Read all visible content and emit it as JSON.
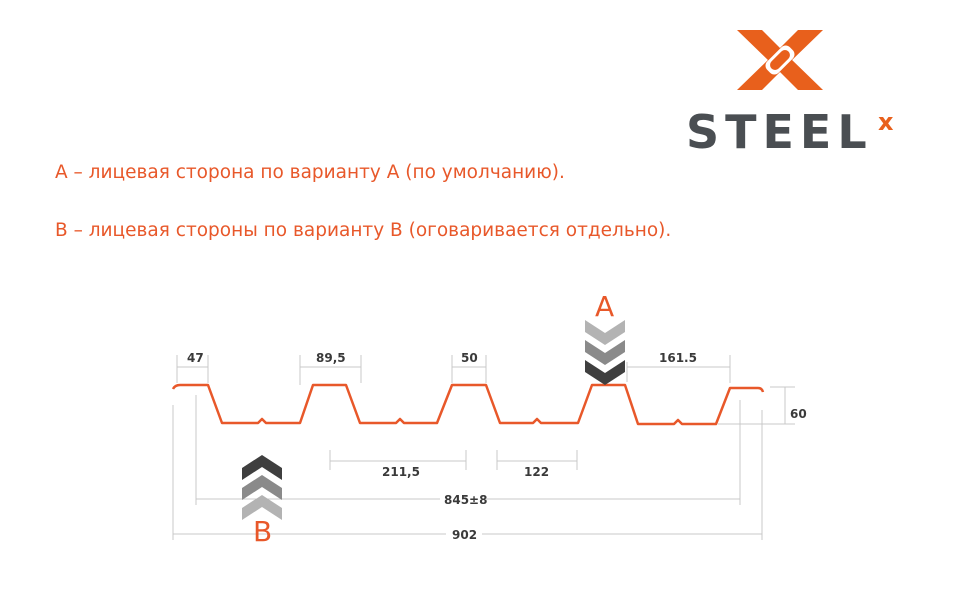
{
  "logo": {
    "text": "STEEL",
    "superscript": "x",
    "brand_color": "#e8601c",
    "text_color": "#4a4e52"
  },
  "notes": [
    "A – лицевая сторона по варианту А (по умолчанию).",
    "В – лицевая стороны по варианту В (оговаривается отдельно)."
  ],
  "diagram": {
    "profile_color": "#e8582a",
    "side_labels": {
      "a": "A",
      "b": "B"
    },
    "dimensions": {
      "d47": "47",
      "d89": "89,5",
      "d50": "50",
      "d161": "161.5",
      "d60": "60",
      "d211": "211,5",
      "d122": "122",
      "d845": "845±8",
      "d902": "902"
    }
  }
}
